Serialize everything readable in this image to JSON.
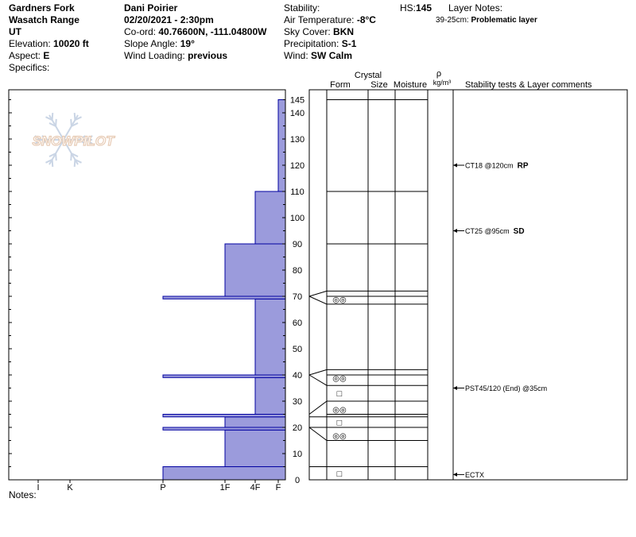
{
  "header": {
    "col1": {
      "location": "Gardners Fork",
      "range": "Wasatch Range",
      "state": "UT",
      "elevation_label": "Elevation:",
      "elevation_value": "10020 ft",
      "aspect_label": "Aspect:",
      "aspect_value": "E",
      "specifics_label": "Specifics:"
    },
    "col2": {
      "observer": "Dani Poirier",
      "datetime": "02/20/2021 - 2:30pm",
      "coord_label": "Co-ord:",
      "coord_value": "40.76600N, -111.04800W",
      "slope_label": "Slope Angle:",
      "slope_value": "19°",
      "wind_loading_label": "Wind Loading:",
      "wind_loading_value": "previous"
    },
    "col3": {
      "stability_label": "Stability:",
      "air_temp_label": "Air Temperature:",
      "air_temp_value": "-8°C",
      "sky_label": "Sky Cover:",
      "sky_value": "BKN",
      "precip_label": "Precipitation:",
      "precip_value": "S-1",
      "wind_label": "Wind:",
      "wind_value": "SW Calm"
    },
    "hs_label": "HS:",
    "hs_value": "145",
    "layer_notes_label": "Layer Notes:",
    "layer_note_range": "39-25cm:",
    "layer_note_text": "Problematic layer"
  },
  "watermark": "SNOWPILOT",
  "notes_label": "Notes:",
  "colors": {
    "hardness_fill": "#9b9bdc",
    "hardness_stroke": "#0000a0"
  },
  "chart_data": {
    "type": "profile",
    "height_unit": "cm",
    "total_depth": 145,
    "y_ticks": [
      0,
      10,
      20,
      30,
      40,
      50,
      60,
      70,
      80,
      90,
      100,
      110,
      120,
      130,
      140,
      145
    ],
    "hardness_scale": [
      "I",
      "K",
      "P",
      "1F",
      "4F",
      "F"
    ],
    "hardness_layers": [
      {
        "bottom": 0,
        "top": 5,
        "hardness": "P"
      },
      {
        "bottom": 5,
        "top": 19,
        "hardness": "1F"
      },
      {
        "bottom": 19,
        "top": 20,
        "hardness": "P"
      },
      {
        "bottom": 20,
        "top": 24,
        "hardness": "1F"
      },
      {
        "bottom": 24,
        "top": 25,
        "hardness": "P"
      },
      {
        "bottom": 25,
        "top": 39,
        "hardness": "4F"
      },
      {
        "bottom": 39,
        "top": 40,
        "hardness": "P"
      },
      {
        "bottom": 40,
        "top": 69,
        "hardness": "4F"
      },
      {
        "bottom": 69,
        "top": 70,
        "hardness": "P"
      },
      {
        "bottom": 70,
        "top": 90,
        "hardness": "1F"
      },
      {
        "bottom": 90,
        "top": 110,
        "hardness": "4F"
      },
      {
        "bottom": 110,
        "top": 145,
        "hardness": "F"
      }
    ],
    "layer_table_headers": {
      "crystal": "Crystal",
      "form": "Form",
      "size": "Size",
      "moisture": "Moisture",
      "rho": "ρ",
      "density_unit": "kg/m³",
      "comments": "Stability tests & Layer comments"
    },
    "layer_boundaries": [
      0,
      5,
      15,
      20,
      24,
      25,
      30,
      36,
      40,
      42,
      67,
      70,
      72,
      90,
      110,
      145
    ],
    "crystal_forms": [
      {
        "depth": 2.5,
        "symbol": "□"
      },
      {
        "depth": 17,
        "symbol": "◎◎"
      },
      {
        "depth": 22,
        "symbol": "□"
      },
      {
        "depth": 27,
        "symbol": "◎◎"
      },
      {
        "depth": 33,
        "symbol": "□"
      },
      {
        "depth": 39,
        "symbol": "◎◎"
      },
      {
        "depth": 69,
        "symbol": "◎◎"
      }
    ],
    "stability_tests": [
      {
        "depth": 120,
        "text": "CT18 @120cm",
        "bold": "RP"
      },
      {
        "depth": 95,
        "text": "CT25 @95cm",
        "bold": "SD"
      },
      {
        "depth": 35,
        "text": "PST45/120 (End) @35cm",
        "bold": ""
      },
      {
        "depth": 2,
        "text": "ECTX",
        "bold": ""
      }
    ]
  }
}
